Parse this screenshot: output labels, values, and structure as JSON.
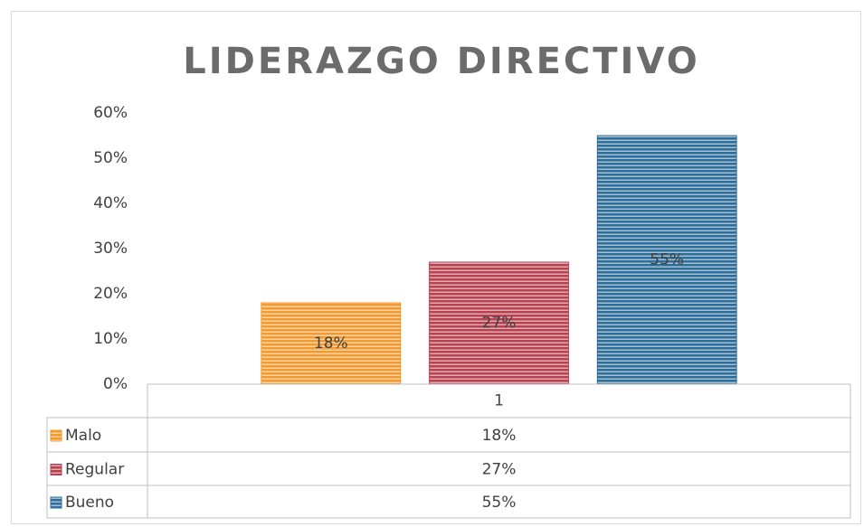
{
  "chart_data": {
    "type": "bar",
    "title": "LIDERAZGO DIRECTIVO",
    "categories": [
      "1"
    ],
    "series": [
      {
        "name": "Malo",
        "color": "#f39a2e",
        "values": [
          18
        ],
        "value_labels": [
          "18%"
        ]
      },
      {
        "name": "Regular",
        "color": "#b8414f",
        "values": [
          27
        ],
        "value_labels": [
          "27%"
        ]
      },
      {
        "name": "Bueno",
        "color": "#2e6e99",
        "values": [
          55
        ],
        "value_labels": [
          "55%"
        ]
      }
    ],
    "ylim": [
      0,
      60
    ],
    "yticks": [
      {
        "value": 0,
        "label": "0%"
      },
      {
        "value": 10,
        "label": "10%"
      },
      {
        "value": 20,
        "label": "20%"
      },
      {
        "value": 30,
        "label": "30%"
      },
      {
        "value": 40,
        "label": "40%"
      },
      {
        "value": 50,
        "label": "50%"
      },
      {
        "value": 60,
        "label": "60%"
      }
    ],
    "grid": false,
    "legend": "data-table"
  }
}
